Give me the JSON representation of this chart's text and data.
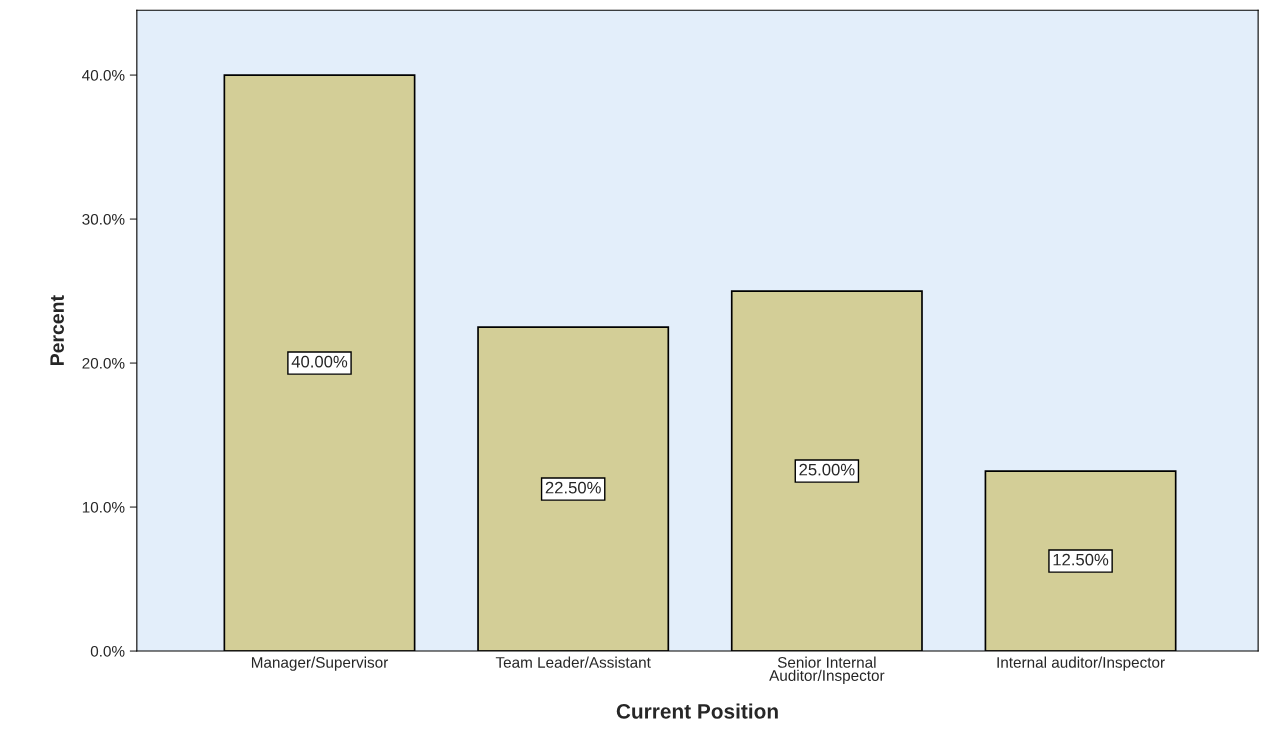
{
  "chart_data": {
    "type": "bar",
    "xlabel": "Current Position",
    "ylabel": "Percent",
    "categories": [
      "Manager/Supervisor",
      "Team Leader/Assistant",
      "Senior Internal\nAuditor/Inspector",
      "Internal auditor/Inspector"
    ],
    "values": [
      40,
      22.5,
      25,
      12.5
    ],
    "value_labels": [
      "40.00%",
      "22.50%",
      "25.00%",
      "12.50%"
    ],
    "color": "#d3ce97",
    "ylim": [
      0,
      44.5
    ],
    "yticks": [
      {
        "value": 0,
        "label": "0.0%"
      },
      {
        "value": 10,
        "label": "10.0%"
      },
      {
        "value": 20,
        "label": "20.0%"
      },
      {
        "value": 30,
        "label": "30.0%"
      },
      {
        "value": 40,
        "label": "40.0%"
      }
    ],
    "grid": false
  }
}
